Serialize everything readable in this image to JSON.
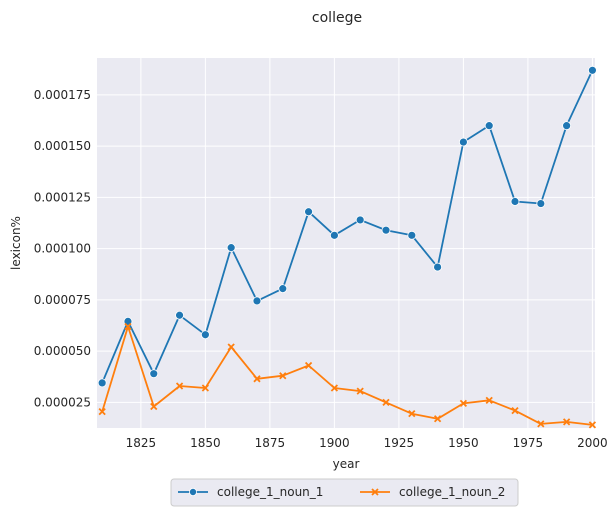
{
  "chart_data": {
    "type": "line",
    "title": "college",
    "xlabel": "year",
    "ylabel": "lexicon%",
    "xlim": [
      1808,
      2001
    ],
    "ylim": [
      1.25e-05,
      0.000193
    ],
    "xticks": [
      1825,
      1850,
      1875,
      1900,
      1925,
      1950,
      1975,
      2000
    ],
    "yticks": [
      2.5e-05,
      5e-05,
      7.5e-05,
      0.0001,
      0.000125,
      0.00015,
      0.000175
    ],
    "ytick_labels": [
      "0.000025",
      "0.000050",
      "0.000075",
      "0.000100",
      "0.000125",
      "0.000150",
      "0.000175"
    ],
    "grid": true,
    "legend_position": "bottom-center",
    "x": [
      1810,
      1820,
      1830,
      1840,
      1850,
      1860,
      1870,
      1880,
      1890,
      1900,
      1910,
      1920,
      1930,
      1940,
      1950,
      1960,
      1970,
      1980,
      1990,
      2000
    ],
    "series": [
      {
        "name": "college_1_noun_1",
        "color": "#1f77b4",
        "marker": "circle",
        "values": [
          3.45e-05,
          6.45e-05,
          3.9e-05,
          6.75e-05,
          5.8e-05,
          0.0001005,
          7.45e-05,
          8.05e-05,
          0.000118,
          0.0001065,
          0.000114,
          0.000109,
          0.0001065,
          9.1e-05,
          0.000152,
          0.00016,
          0.000123,
          0.000122,
          0.00016,
          0.000187
        ]
      },
      {
        "name": "college_1_noun_2",
        "color": "#ff7f0e",
        "marker": "x",
        "values": [
          2.05e-05,
          6.2e-05,
          2.3e-05,
          3.3e-05,
          3.2e-05,
          5.2e-05,
          3.65e-05,
          3.8e-05,
          4.3e-05,
          3.2e-05,
          3.05e-05,
          2.5e-05,
          1.95e-05,
          1.7e-05,
          2.45e-05,
          2.6e-05,
          2.1e-05,
          1.45e-05,
          1.55e-05,
          1.4e-05
        ]
      }
    ]
  }
}
